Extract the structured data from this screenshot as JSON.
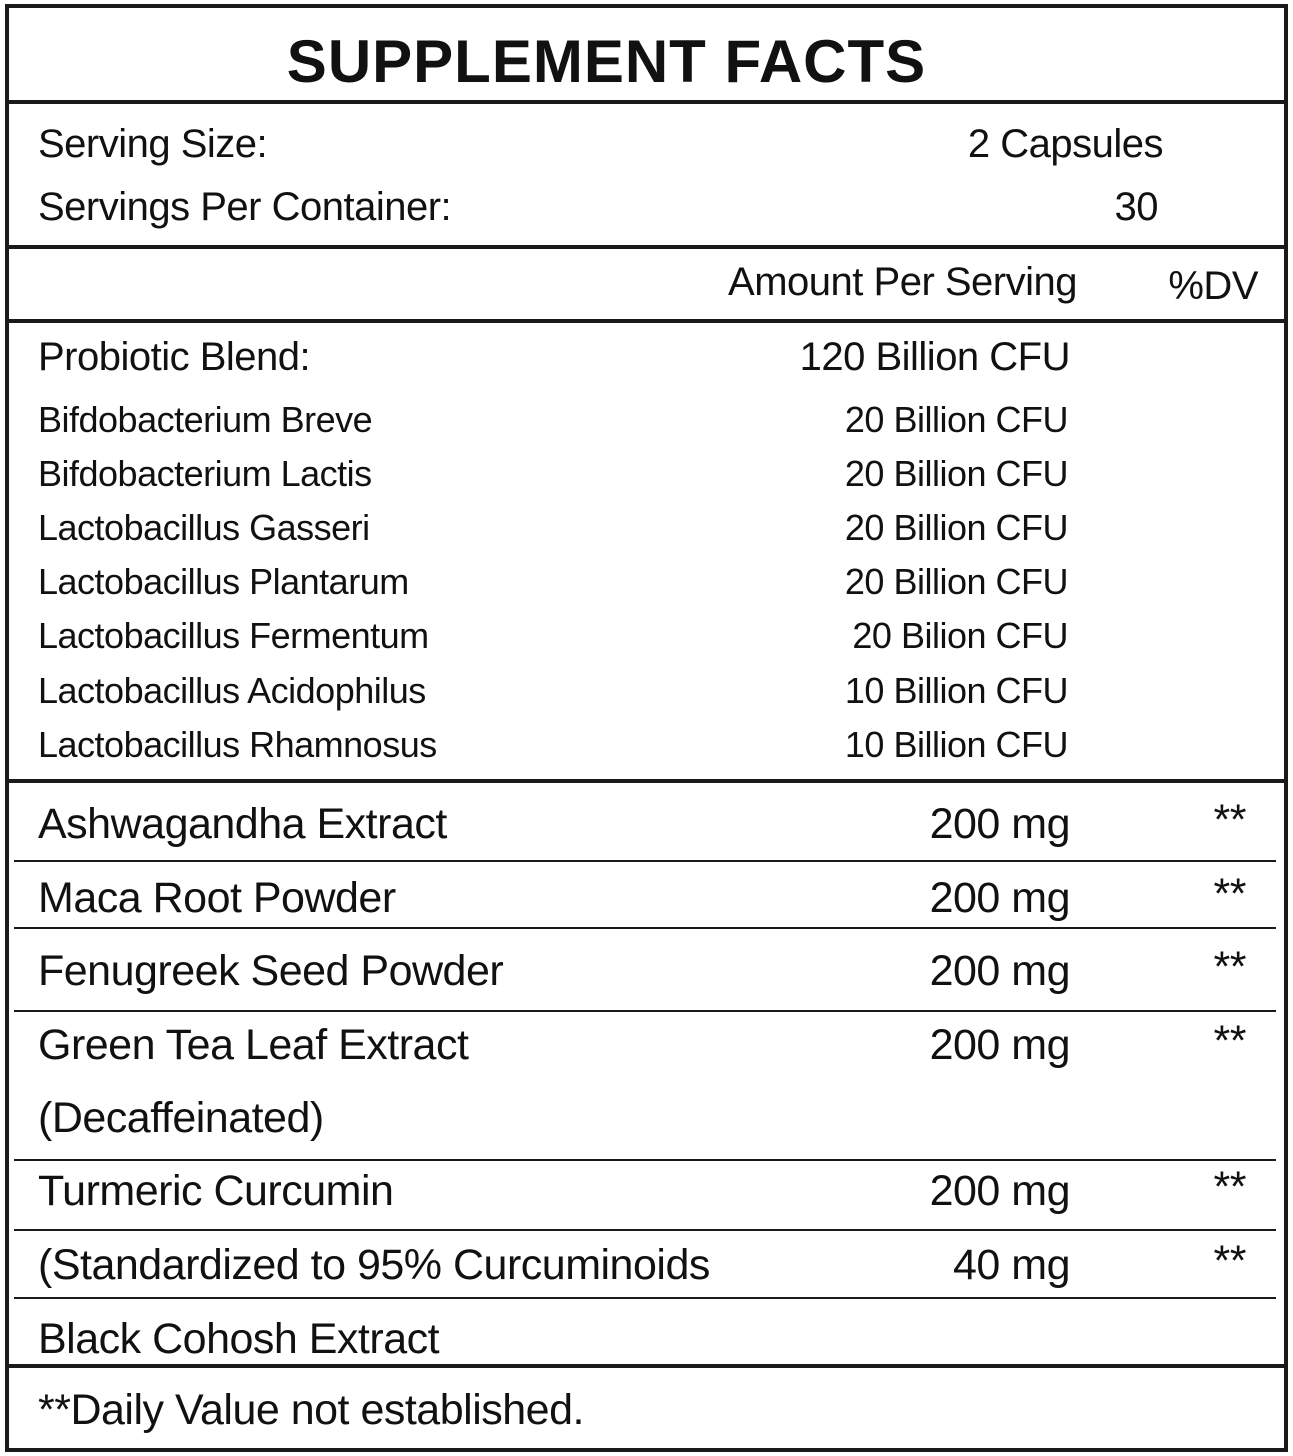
{
  "title": "SUPPLEMENT FACTS",
  "serving": {
    "size_label": "Serving Size:",
    "size_value": "2 Capsules",
    "per_container_label": "Servings Per Container:",
    "per_container_value": "30"
  },
  "header": {
    "amount": "Amount Per Serving",
    "dv": "%DV"
  },
  "probiotic": {
    "label": "Probiotic Blend:",
    "amount": "120 Billion CFU",
    "strains": [
      {
        "name": "Bifdobacterium Breve",
        "amount": "20 Billion CFU"
      },
      {
        "name": "Bifdobacterium Lactis",
        "amount": "20 Billion CFU"
      },
      {
        "name": "Lactobacillus Gasseri",
        "amount": "20 Billion CFU"
      },
      {
        "name": "Lactobacillus Plantarum",
        "amount": "20 Billion CFU"
      },
      {
        "name": "Lactobacillus Fermentum",
        "amount": "20 Bilion CFU"
      },
      {
        "name": "Lactobacillus Acidophilus",
        "amount": "10 Billion CFU"
      },
      {
        "name": "Lactobacillus Rhamnosus",
        "amount": "10 Billion CFU"
      }
    ]
  },
  "ingredients": [
    {
      "name": "Ashwagandha Extract",
      "amount": "200 mg",
      "dv": "**"
    },
    {
      "name": "Maca Root Powder",
      "amount": "200 mg",
      "dv": "**"
    },
    {
      "name": "Fenugreek Seed Powder",
      "amount": "200 mg",
      "dv": "**"
    },
    {
      "name": "Green Tea Leaf Extract",
      "name2": "(Decaffeinated)",
      "amount": "200 mg",
      "dv": "**"
    },
    {
      "name": "Turmeric Curcumin",
      "amount": "200 mg",
      "dv": "**"
    },
    {
      "name": "(Standardized to 95% Curcuminoids",
      "amount": "40 mg",
      "dv": "**"
    },
    {
      "name": "Black Cohosh Extract"
    }
  ],
  "footnote": "**Daily Value not established."
}
